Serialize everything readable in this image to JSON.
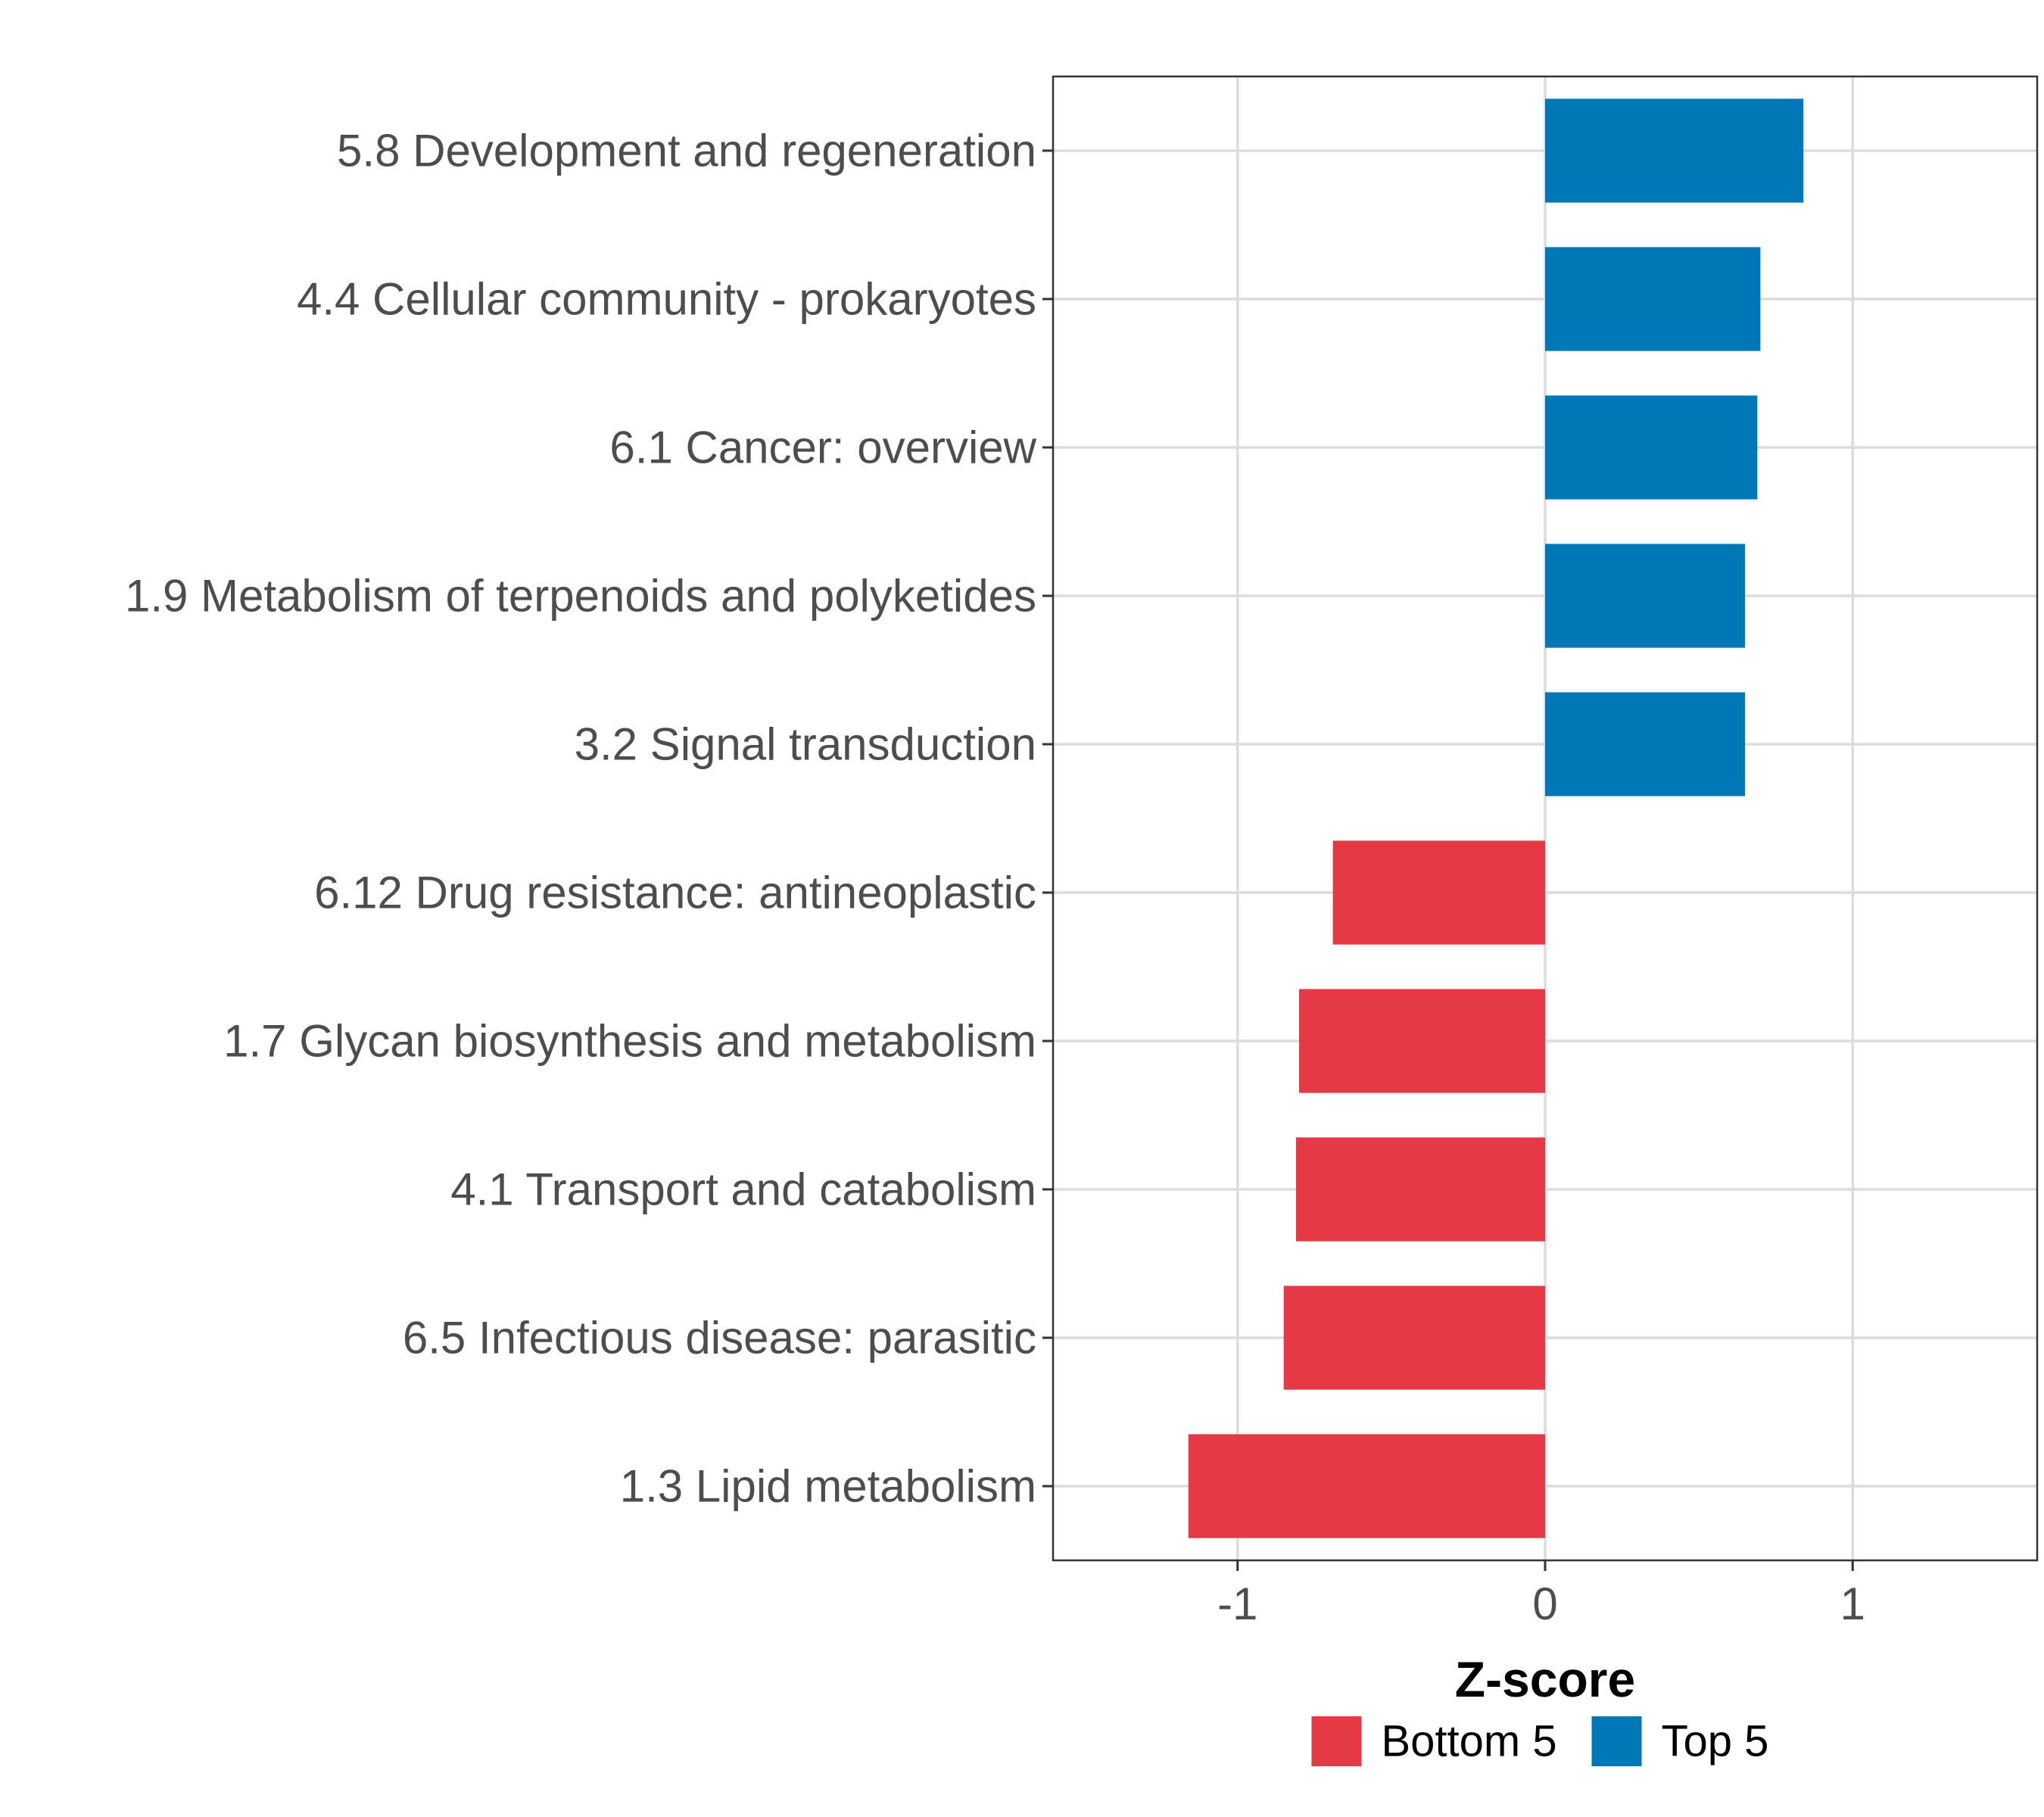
{
  "chart_data": {
    "type": "bar",
    "orientation": "horizontal",
    "xlabel": "Z-score",
    "ylabel": "",
    "xlim": [
      -1.6,
      1.6
    ],
    "xticks": [
      {
        "value": -1,
        "label": "-1"
      },
      {
        "value": 0,
        "label": "0"
      },
      {
        "value": 1,
        "label": "1"
      }
    ],
    "grid": true,
    "legend_position": "bottom",
    "groups": [
      {
        "name": "Bottom 5",
        "color": "#e63946"
      },
      {
        "name": "Top 5",
        "color": "#0077b6"
      }
    ],
    "bars": [
      {
        "category": "5.8 Development and regeneration",
        "value": 0.84,
        "group": "Top 5"
      },
      {
        "category": "4.4 Cellular community - prokaryotes",
        "value": 0.7,
        "group": "Top 5"
      },
      {
        "category": "6.1 Cancer: overview",
        "value": 0.69,
        "group": "Top 5"
      },
      {
        "category": "1.9 Metabolism of terpenoids and polyketides",
        "value": 0.65,
        "group": "Top 5"
      },
      {
        "category": "3.2 Signal transduction",
        "value": 0.65,
        "group": "Top 5"
      },
      {
        "category": "6.12 Drug resistance: antineoplastic",
        "value": -0.69,
        "group": "Bottom 5"
      },
      {
        "category": "1.7 Glycan biosynthesis and metabolism",
        "value": -0.8,
        "group": "Bottom 5"
      },
      {
        "category": "4.1 Transport and catabolism",
        "value": -0.81,
        "group": "Bottom 5"
      },
      {
        "category": "6.5 Infectious disease: parasitic",
        "value": -0.85,
        "group": "Bottom 5"
      },
      {
        "category": "1.3 Lipid metabolism",
        "value": -1.16,
        "group": "Bottom 5"
      }
    ]
  }
}
